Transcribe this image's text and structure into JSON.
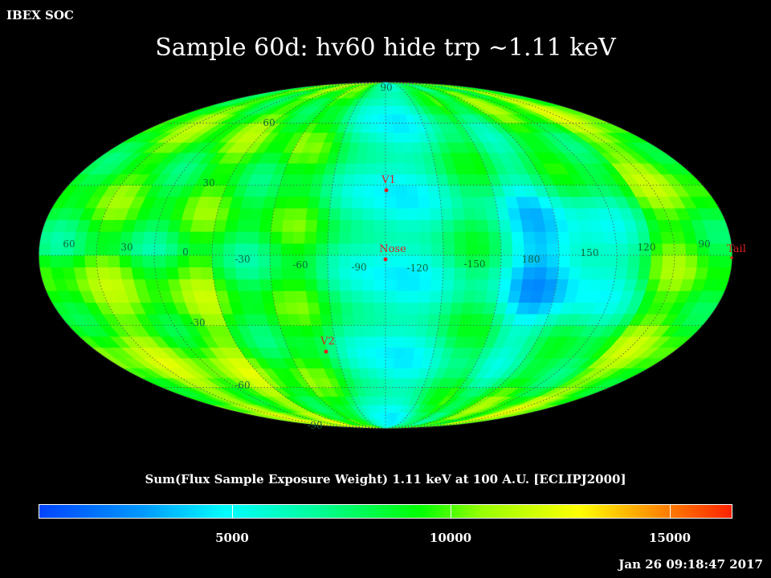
{
  "header": {
    "corner_label": "IBEX SOC",
    "title": "Sample 60d: hv60 hide trp ~1.11 keV"
  },
  "map": {
    "projection": "mollweide",
    "grid_lat_labels": [
      "60",
      "30",
      "-30",
      "-60"
    ],
    "pole_labels": [
      "90",
      "-90"
    ],
    "lon_labels": [
      "60",
      "30",
      "0",
      "-30",
      "-60",
      "-90",
      "-120",
      "-150",
      "180",
      "150",
      "120",
      "90"
    ],
    "markers": [
      {
        "label": "V1"
      },
      {
        "label": "Nose"
      },
      {
        "label": "V2"
      },
      {
        "label": "Tail"
      }
    ],
    "colors": {
      "grid": "#555555",
      "marker": "#dd2222",
      "grid_label": "#0a6a3a"
    }
  },
  "colorbar": {
    "title": "Sum(Flux Sample Exposure Weight)  1.11 keV at 100 A.U. [ECLIPJ2000]",
    "ticks": [
      "5000",
      "10000",
      "15000"
    ],
    "range": [
      0,
      16500
    ]
  },
  "footer": {
    "timestamp": "Jan 26 09:18:47 2017"
  }
}
